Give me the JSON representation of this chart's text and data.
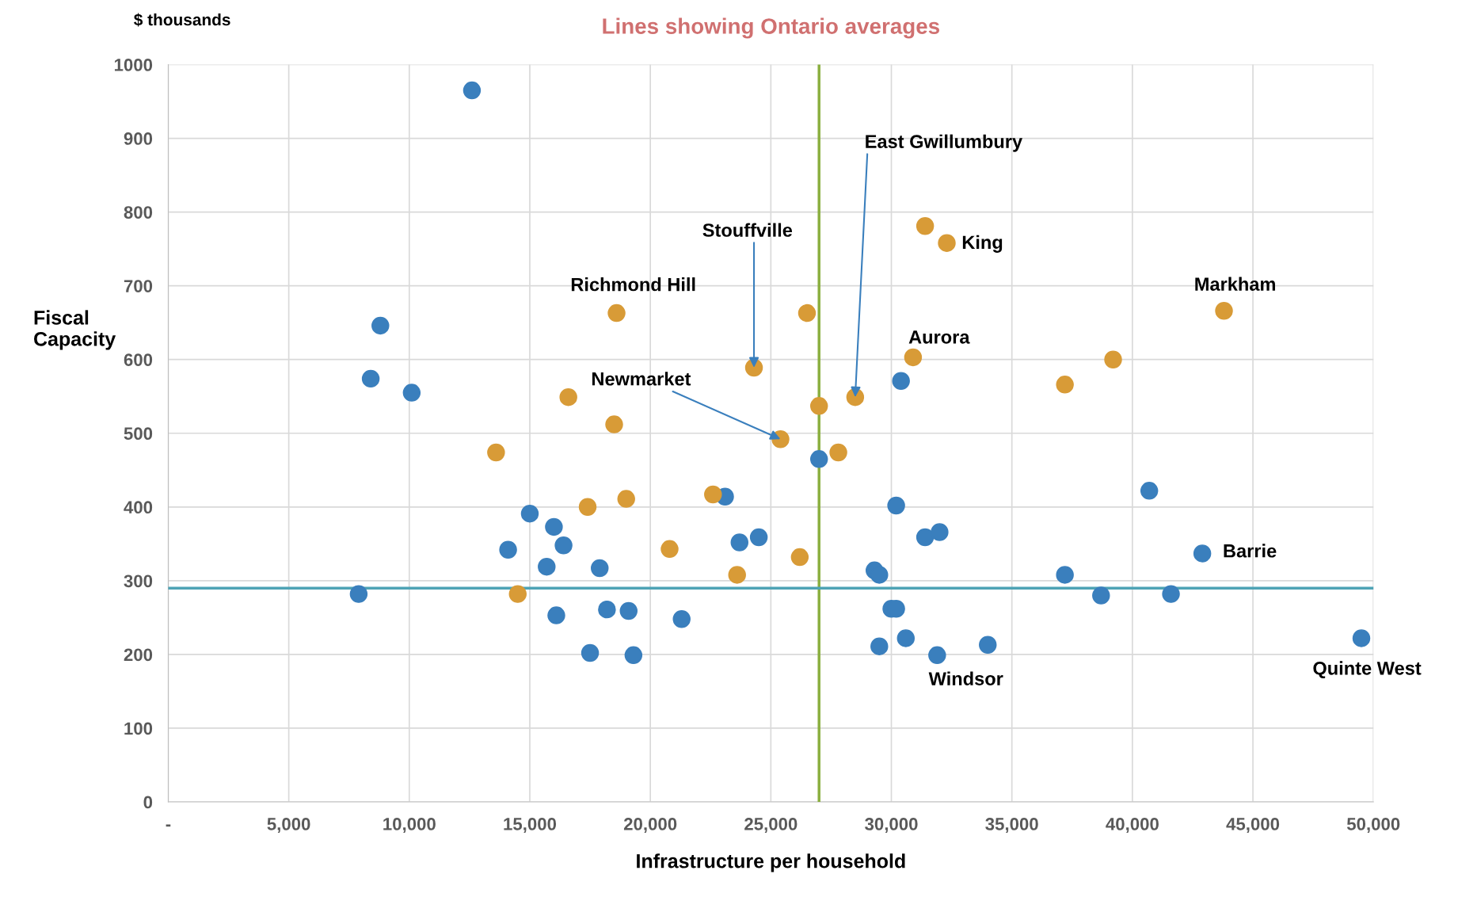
{
  "chart_data": {
    "type": "scatter",
    "title": "Lines showing Ontario averages",
    "xlabel": "Infrastructure per household",
    "ylabel": "Fiscal\nCapacity",
    "xlim": [
      0,
      50000
    ],
    "ylim": [
      0,
      1000
    ],
    "xticks": [
      {
        "value": 0,
        "label": "-"
      },
      {
        "value": 5000,
        "label": "5,000"
      },
      {
        "value": 10000,
        "label": "10,000"
      },
      {
        "value": 15000,
        "label": "15,000"
      },
      {
        "value": 20000,
        "label": "20,000"
      },
      {
        "value": 25000,
        "label": "25,000"
      },
      {
        "value": 30000,
        "label": "30,000"
      },
      {
        "value": 35000,
        "label": "35,000"
      },
      {
        "value": 40000,
        "label": "40,000"
      },
      {
        "value": 45000,
        "label": "45,000"
      },
      {
        "value": 50000,
        "label": "50,000"
      }
    ],
    "yticks": [
      0,
      100,
      200,
      300,
      400,
      500,
      600,
      700,
      800,
      900,
      1000
    ],
    "grid": true,
    "marker": "circle",
    "series": [
      {
        "color": "#3a7fbd",
        "x": [
          12600,
          8800,
          8400,
          10100,
          7900,
          15000,
          16000,
          14100,
          16400,
          15700,
          17900,
          16100,
          18200,
          19100,
          17500,
          19300,
          21300,
          23100,
          23700,
          24500,
          27000,
          30200,
          30400,
          31400,
          32000,
          29300,
          29500,
          30000,
          30200,
          29500,
          30600,
          31900,
          34000,
          37200,
          38700,
          40700,
          41600,
          42900,
          49500
        ],
        "values": [
          965,
          646,
          574,
          555,
          282,
          391,
          373,
          342,
          348,
          319,
          317,
          253,
          261,
          259,
          202,
          199,
          248,
          414,
          352,
          359,
          465,
          402,
          571,
          359,
          366,
          314,
          308,
          262,
          262,
          211,
          222,
          199,
          213,
          308,
          280,
          422,
          282,
          337,
          222
        ]
      },
      {
        "color": "#d89b37",
        "x": [
          18600,
          26500,
          24300,
          16600,
          18500,
          25400,
          27000,
          28500,
          27800,
          13600,
          17400,
          19000,
          22600,
          20800,
          23600,
          26200,
          14500,
          31400,
          32300,
          30900,
          37200,
          39200,
          43800
        ],
        "values": [
          663,
          663,
          589,
          549,
          512,
          492,
          537,
          549,
          474,
          474,
          400,
          411,
          417,
          343,
          308,
          332,
          282,
          781,
          758,
          603,
          566,
          600,
          666
        ]
      }
    ],
    "ref_lines": [
      {
        "axis": "x",
        "value": 27000,
        "color": "#8aaf3f"
      },
      {
        "axis": "y",
        "value": 290,
        "color": "#4fa3b5"
      }
    ],
    "annotations": [
      "$ thousands",
      {
        "text": "Richmond Hill",
        "x": 18600,
        "y": 663
      },
      {
        "text": "Stouffville",
        "x": 24300,
        "y": 589
      },
      {
        "text": "Newmarket",
        "x": 25400,
        "y": 492
      },
      {
        "text": "East Gwillumbury",
        "x": 28500,
        "y": 549
      },
      {
        "text": "King",
        "x": 32300,
        "y": 758
      },
      {
        "text": "Markham",
        "x": 43800,
        "y": 666
      },
      {
        "text": "Aurora",
        "x": 30900,
        "y": 603
      },
      {
        "text": "Barrie",
        "x": 42900,
        "y": 337
      },
      {
        "text": "Quinte West",
        "x": 49500,
        "y": 222
      },
      {
        "text": "Windsor",
        "x": 31900,
        "y": 199
      }
    ]
  }
}
